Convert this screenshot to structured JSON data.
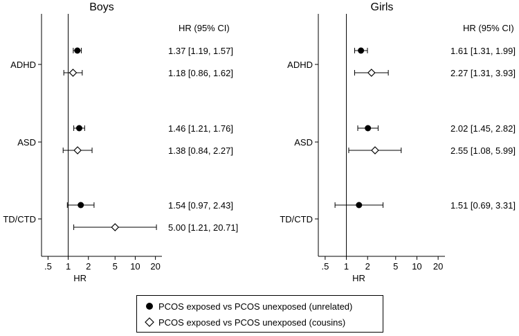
{
  "chart_data": {
    "type": "forest",
    "xscale": "log",
    "xlabel": "HR",
    "xticks": [
      0.5,
      1,
      2,
      5,
      10,
      20
    ],
    "xtick_labels": [
      ".5",
      "1",
      "2",
      "5",
      "10",
      "20"
    ],
    "xlim": [
      0.4,
      25
    ],
    "reference_line": 1,
    "ci_header": "HR (95% CI)",
    "groups": [
      "ADHD",
      "ASD",
      "TD/CTD"
    ],
    "panels": [
      {
        "title": "Boys",
        "estimates": [
          {
            "group": "ADHD",
            "series": "unrelated",
            "hr": 1.37,
            "lo": 1.19,
            "hi": 1.57,
            "text": "1.37 [1.19, 1.57]"
          },
          {
            "group": "ADHD",
            "series": "cousins",
            "hr": 1.18,
            "lo": 0.86,
            "hi": 1.62,
            "text": "1.18 [0.86, 1.62]"
          },
          {
            "group": "ASD",
            "series": "unrelated",
            "hr": 1.46,
            "lo": 1.21,
            "hi": 1.76,
            "text": "1.46 [1.21, 1.76]"
          },
          {
            "group": "ASD",
            "series": "cousins",
            "hr": 1.38,
            "lo": 0.84,
            "hi": 2.27,
            "text": "1.38 [0.84, 2.27]"
          },
          {
            "group": "TD/CTD",
            "series": "unrelated",
            "hr": 1.54,
            "lo": 0.97,
            "hi": 2.43,
            "text": "1.54 [0.97, 2.43]"
          },
          {
            "group": "TD/CTD",
            "series": "cousins",
            "hr": 5.0,
            "lo": 1.21,
            "hi": 20.71,
            "text": "5.00 [1.21, 20.71]"
          }
        ]
      },
      {
        "title": "Girls",
        "estimates": [
          {
            "group": "ADHD",
            "series": "unrelated",
            "hr": 1.61,
            "lo": 1.31,
            "hi": 1.99,
            "text": "1.61 [1.31, 1.99]"
          },
          {
            "group": "ADHD",
            "series": "cousins",
            "hr": 2.27,
            "lo": 1.31,
            "hi": 3.93,
            "text": "2.27 [1.31, 3.93]"
          },
          {
            "group": "ASD",
            "series": "unrelated",
            "hr": 2.02,
            "lo": 1.45,
            "hi": 2.82,
            "text": "2.02 [1.45, 2.82]"
          },
          {
            "group": "ASD",
            "series": "cousins",
            "hr": 2.55,
            "lo": 1.08,
            "hi": 5.99,
            "text": "2.55 [1.08, 5.99]"
          },
          {
            "group": "TD/CTD",
            "series": "unrelated",
            "hr": 1.51,
            "lo": 0.69,
            "hi": 3.31,
            "text": "1.51 [0.69, 3.31]"
          }
        ]
      }
    ],
    "legend": [
      {
        "series": "unrelated",
        "marker": "filled-circle",
        "label": "PCOS  exposed vs PCOS  unexposed (unrelated)"
      },
      {
        "series": "cousins",
        "marker": "hollow-diamond",
        "label": "PCOS  exposed vs PCOS  unexposed (cousins)"
      }
    ]
  }
}
